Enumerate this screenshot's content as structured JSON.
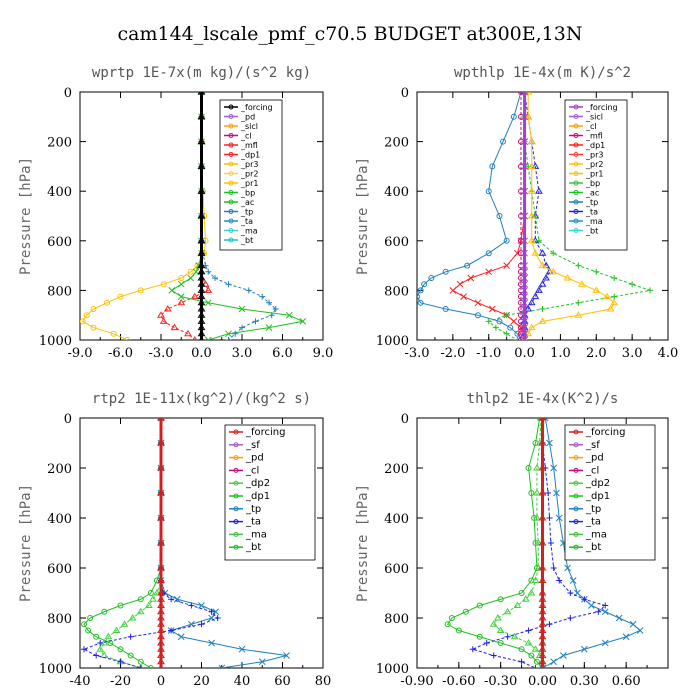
{
  "title": "cam144_lscale_pmf_c70.5  BUDGET at300E,13N",
  "chart_data": [
    {
      "type": "line",
      "title": "wprtp  1E-7x(m kg)/(s^2 kg)",
      "ylabel": "Pressure [hPa]",
      "xlim": [
        -9,
        9
      ],
      "ylim": [
        1000,
        0
      ],
      "xticks": [
        "-9.0",
        "-6.0",
        "-3.0",
        "0.0",
        "3.0",
        "6.0",
        "9.0"
      ],
      "xtick_values": [
        -9,
        -6,
        -3,
        0,
        3,
        6,
        9
      ],
      "yticks": [
        "0",
        "200",
        "400",
        "600",
        "800",
        "1000"
      ],
      "ytick_values": [
        0,
        200,
        400,
        600,
        800,
        1000
      ],
      "pressure": [
        0,
        100,
        200,
        300,
        400,
        500,
        600,
        650,
        700,
        725,
        750,
        775,
        800,
        825,
        850,
        875,
        900,
        925,
        950,
        975,
        1000
      ],
      "legend": [
        "_forcing",
        "_pd",
        "_sicl",
        "_cl",
        "_mfl",
        "_dp1",
        "_pr3",
        "_pr2",
        "_pr1",
        "_bp",
        "_ac",
        "_tp",
        "_ta",
        "_ma",
        "_bt"
      ],
      "series": [
        {
          "name": "_pr1",
          "color": "#ffc000",
          "values": [
            0,
            0,
            0,
            0,
            0.1,
            0.2,
            0.3,
            0.2,
            -0.3,
            -0.8,
            -1.5,
            -2.8,
            -4.5,
            -6.0,
            -7.0,
            -8.0,
            -8.5,
            -8.8,
            -8.0,
            -6.5,
            -5.5
          ]
        },
        {
          "name": "_dp1",
          "color": "#ff2020",
          "values": [
            0,
            0,
            0,
            0,
            0,
            0,
            0,
            0,
            0,
            0,
            0,
            0.3,
            0.5,
            -0.5,
            -1.5,
            -2.5,
            -3.0,
            -2.8,
            -2.0,
            -1.0,
            -0.5
          ]
        },
        {
          "name": "_ac",
          "color": "#20c020",
          "values": [
            0,
            0,
            0,
            0,
            0,
            0,
            0,
            0,
            -0.2,
            -0.4,
            -0.8,
            -1.5,
            -2.2,
            -1.5,
            0.5,
            3.0,
            6.5,
            7.5,
            5.0,
            2.0,
            0.5
          ]
        },
        {
          "name": "_tp",
          "color": "#2080c0",
          "values": [
            0,
            0,
            0,
            0,
            0,
            0,
            0,
            0.1,
            0.3,
            0.5,
            1.0,
            2.0,
            3.5,
            4.5,
            5.0,
            5.5,
            5.2,
            4.0,
            3.0,
            2.5,
            2.0
          ]
        },
        {
          "name": "_forcing",
          "color": "#000000",
          "values": [
            0,
            0,
            0,
            0,
            0,
            0,
            0,
            0,
            0,
            0,
            0,
            0,
            0,
            0,
            0,
            0,
            0,
            0,
            0,
            0,
            0
          ]
        }
      ]
    },
    {
      "type": "line",
      "title": "wpthlp  1E-4x(m K)/s^2",
      "ylabel": "Pressure [hPa]",
      "xlim": [
        -3,
        4
      ],
      "ylim": [
        1000,
        0
      ],
      "xticks": [
        "-3.0",
        "-2.0",
        "-1.0",
        "0.0",
        "1.0",
        "2.0",
        "3.0",
        "4.0"
      ],
      "xtick_values": [
        -3,
        -2,
        -1,
        0,
        1,
        2,
        3,
        4
      ],
      "yticks": [
        "0",
        "200",
        "400",
        "600",
        "800",
        "1000"
      ],
      "ytick_values": [
        0,
        200,
        400,
        600,
        800,
        1000
      ],
      "pressure": [
        0,
        100,
        200,
        300,
        400,
        500,
        600,
        650,
        700,
        725,
        750,
        775,
        800,
        825,
        850,
        875,
        900,
        925,
        950,
        975,
        1000
      ],
      "legend": [
        "_forcing",
        "_sicl",
        "_cl",
        "_mfl",
        "_dp1",
        "_pr3",
        "_pr2",
        "_pr1",
        "_bp",
        "_ac",
        "_tp",
        "_ta",
        "_ma",
        "_bt"
      ],
      "series": [
        {
          "name": "_tp",
          "color": "#2080c0",
          "values": [
            -0.1,
            -0.3,
            -0.6,
            -0.9,
            -1.0,
            -0.7,
            -0.5,
            -1.0,
            -1.6,
            -2.2,
            -2.6,
            -2.8,
            -2.9,
            -3.0,
            -2.9,
            -2.2,
            -1.3,
            -0.7,
            -0.4,
            -0.2,
            -0.1
          ]
        },
        {
          "name": "_ta",
          "color": "#2020e0",
          "values": [
            0,
            0.1,
            0.2,
            0.3,
            0.4,
            0.3,
            0.3,
            0.5,
            0.6,
            0.7,
            0.6,
            0.5,
            0.4,
            0.3,
            0.2,
            0.1,
            0,
            0,
            0,
            0,
            0
          ]
        },
        {
          "name": "_dp1",
          "color": "#ff2020",
          "values": [
            0,
            0,
            0,
            0,
            0,
            0,
            -0.1,
            -0.2,
            -0.5,
            -1.0,
            -1.5,
            -1.8,
            -2.0,
            -1.7,
            -1.3,
            -0.9,
            -0.5,
            -0.3,
            -0.1,
            0,
            0
          ]
        },
        {
          "name": "_ac",
          "color": "#20c020",
          "values": [
            0,
            0,
            0,
            0.1,
            0.2,
            0.3,
            0.4,
            0.8,
            1.5,
            2.0,
            2.5,
            3.0,
            3.5,
            2.5,
            1.5,
            0.5,
            -0.5,
            -1.0,
            -0.8,
            -0.5,
            -0.2
          ]
        },
        {
          "name": "_pr1",
          "color": "#ffc000",
          "values": [
            0.1,
            0.1,
            0.2,
            0.2,
            0.2,
            0.2,
            0.2,
            0.3,
            0.5,
            0.8,
            1.2,
            1.6,
            2.0,
            2.3,
            2.5,
            2.4,
            1.5,
            0.5,
            0.2,
            0.1,
            0
          ]
        },
        {
          "name": "_mfl",
          "color": "#c01080",
          "values": [
            -0.1,
            -0.1,
            -0.1,
            -0.1,
            -0.1,
            -0.1,
            -0.1,
            -0.1,
            -0.1,
            -0.1,
            -0.1,
            -0.1,
            -0.1,
            -0.1,
            -0.1,
            -0.1,
            -0.1,
            -0.1,
            -0.1,
            -0.1,
            -0.1
          ]
        },
        {
          "name": "_forcing",
          "color": "#a040d0",
          "values": [
            0,
            0,
            0,
            0,
            0,
            0,
            0,
            0,
            0,
            0,
            0,
            0,
            0,
            0,
            0,
            0,
            0,
            0,
            0,
            0,
            0
          ]
        }
      ]
    },
    {
      "type": "line",
      "title": "rtp2  1E-11x(kg^2)/(kg^2 s)",
      "ylabel": "Pressure [hPa]",
      "xlim": [
        -40,
        80
      ],
      "ylim": [
        1000,
        0
      ],
      "xticks": [
        "-40",
        "-20",
        "0",
        "20",
        "40",
        "60",
        "80"
      ],
      "xtick_values": [
        -40,
        -20,
        0,
        20,
        40,
        60,
        80
      ],
      "yticks": [
        "0",
        "200",
        "400",
        "600",
        "800",
        "1000"
      ],
      "ytick_values": [
        0,
        200,
        400,
        600,
        800,
        1000
      ],
      "pressure": [
        0,
        100,
        200,
        300,
        400,
        500,
        600,
        650,
        700,
        725,
        750,
        775,
        800,
        825,
        850,
        875,
        900,
        925,
        950,
        975,
        1000
      ],
      "legend": [
        "_forcing",
        "_sf",
        "_pd",
        "_cl",
        "_dp2",
        "_dp1",
        "_tp",
        "_ta",
        "_ma",
        "_bt"
      ],
      "series": [
        {
          "name": "_dp1",
          "color": "#20c020",
          "values": [
            0,
            0,
            0,
            0,
            0,
            0,
            0,
            -2,
            -5,
            -10,
            -20,
            -28,
            -35,
            -38,
            -36,
            -32,
            -25,
            -20,
            -15,
            -10,
            -5
          ]
        },
        {
          "name": "_dp2",
          "color": "#40d040",
          "values": [
            0,
            0,
            0,
            0,
            0,
            0,
            0,
            0,
            -2,
            -4,
            -6,
            -10,
            -14,
            -18,
            -22,
            -26,
            -28,
            -30,
            -28,
            -20,
            -10
          ]
        },
        {
          "name": "_tp",
          "color": "#2080c0",
          "values": [
            0,
            0,
            0,
            0,
            0,
            0,
            0,
            0,
            2,
            8,
            20,
            27,
            25,
            15,
            5,
            10,
            25,
            40,
            62,
            50,
            30
          ]
        },
        {
          "name": "_ta",
          "color": "#2020e0",
          "values": [
            0,
            0,
            0,
            0,
            0,
            0,
            0,
            0,
            1,
            5,
            15,
            25,
            28,
            20,
            5,
            -15,
            -30,
            -38,
            -32,
            -20,
            -10
          ]
        },
        {
          "name": "_forcing",
          "color": "#d02020",
          "values": [
            0,
            0,
            0,
            0,
            0,
            0,
            0,
            0,
            0,
            0,
            0,
            0,
            0,
            0,
            0,
            0,
            0,
            0,
            0,
            0,
            0
          ]
        }
      ]
    },
    {
      "type": "line",
      "title": "thlp2  1E-4x(K^2)/s",
      "ylabel": "Pressure [hPa]",
      "xlim": [
        -0.9,
        0.9
      ],
      "ylim": [
        1000,
        0
      ],
      "xticks": [
        "-0.90",
        "-0.60",
        "-0.30",
        "0.00",
        "0.30",
        "0.60"
      ],
      "xtick_values": [
        -0.9,
        -0.6,
        -0.3,
        0,
        0.3,
        0.6
      ],
      "yticks": [
        "0",
        "200",
        "400",
        "600",
        "800",
        "1000"
      ],
      "ytick_values": [
        0,
        200,
        400,
        600,
        800,
        1000
      ],
      "pressure": [
        0,
        100,
        200,
        300,
        400,
        500,
        600,
        650,
        700,
        725,
        750,
        775,
        800,
        825,
        850,
        875,
        900,
        925,
        950,
        975,
        1000
      ],
      "legend": [
        "_forcing",
        "_sf",
        "_pd",
        "_cl",
        "_dp2",
        "_dp1",
        "_tp",
        "_ta",
        "_ma",
        "_bt"
      ],
      "series": [
        {
          "name": "_dp1",
          "color": "#20c020",
          "values": [
            -0.02,
            -0.05,
            -0.1,
            -0.08,
            -0.06,
            -0.05,
            -0.04,
            -0.08,
            -0.15,
            -0.3,
            -0.45,
            -0.55,
            -0.65,
            -0.68,
            -0.6,
            -0.45,
            -0.3,
            -0.15,
            -0.08,
            -0.04,
            0
          ]
        },
        {
          "name": "_dp2",
          "color": "#40d040",
          "values": [
            -0.01,
            -0.02,
            -0.04,
            -0.04,
            -0.04,
            -0.03,
            -0.03,
            -0.05,
            -0.08,
            -0.12,
            -0.18,
            -0.25,
            -0.32,
            -0.35,
            -0.3,
            -0.2,
            -0.1,
            -0.05,
            -0.02,
            0,
            0
          ]
        },
        {
          "name": "_tp",
          "color": "#2080c0",
          "values": [
            0.02,
            0.05,
            0.08,
            0.1,
            0.12,
            0.15,
            0.18,
            0.22,
            0.25,
            0.3,
            0.35,
            0.45,
            0.55,
            0.65,
            0.7,
            0.6,
            0.45,
            0.3,
            0.15,
            0.08,
            0
          ]
        },
        {
          "name": "_ta",
          "color": "#2020e0",
          "values": [
            0,
            0,
            0.02,
            0.04,
            0.05,
            0.06,
            0.08,
            0.12,
            0.2,
            0.3,
            0.45,
            0.4,
            0.2,
            0.05,
            -0.1,
            -0.25,
            -0.4,
            -0.5,
            -0.35,
            -0.15,
            -0.05
          ]
        },
        {
          "name": "_forcing",
          "color": "#d02020",
          "values": [
            0,
            0,
            0,
            0,
            0,
            0,
            0,
            0,
            0,
            0,
            0,
            0,
            0,
            0,
            0,
            0,
            0,
            0,
            0,
            0,
            0
          ]
        }
      ]
    }
  ]
}
